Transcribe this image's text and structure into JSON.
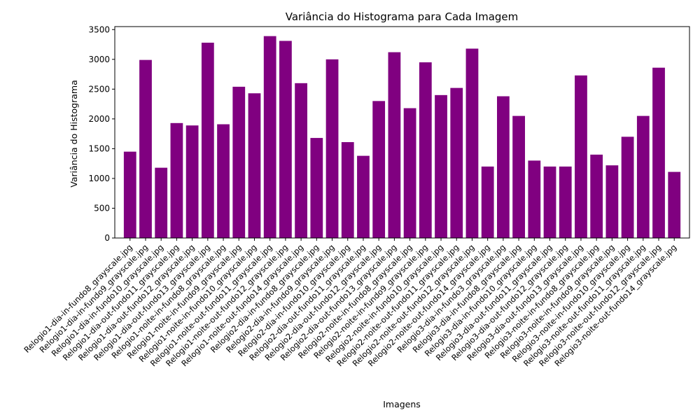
{
  "chart_data": {
    "type": "bar",
    "title": "Variância do Histograma para Cada Imagem",
    "xlabel": "Imagens",
    "ylabel": "Variância do Histograma",
    "ylim": [
      0,
      3550
    ],
    "yticks": [
      0,
      500,
      1000,
      1500,
      2000,
      2500,
      3000,
      3500
    ],
    "bar_color": "#800080",
    "grid": false,
    "categories": [
      "Relogio1-dia-in-fundo8_grayscale.jpg",
      "Relogio1-dia-in-fundo9_grayscale.jpg",
      "Relogio1-dia-in-fundo10_grayscale.jpg",
      "Relogio1-dia-out-fundo11_grayscale.jpg",
      "Relogio1-dia-out-fundo12_grayscale.jpg",
      "Relogio1-dia-out-fundo13_grayscale.jpg",
      "Relogio1-noite-in-fundo8_grayscale.jpg",
      "Relogio1-noite-in-fundo9_grayscale.jpg",
      "Relogio1-noite-in-fundo10_grayscale.jpg",
      "Relogio1-noite-out-fundo11_grayscale.jpg",
      "Relogio1-noite-out-fundo12_grayscale.jpg",
      "Relogio1-noite-out-fundo14_grayscale.jpg",
      "Relogio2-dia-in-fundo8_grayscale.jpg",
      "Relogio2-dia-in-fundo9_grayscale.jpg",
      "Relogio2-dia-in-fundo10_grayscale.jpg",
      "Relogio2-dia-out-fundo11_grayscale.jpg",
      "Relogio2-dia-out-fundo12_grayscale.jpg",
      "Relogio2-dia-out-fundo13_grayscale.jpg",
      "Relogio2-noite-in-fundo8_grayscale.jpg",
      "Relogio2-noite-in-fundo9_grayscale.jpg",
      "Relogio2-noite-in-fundo10_grayscale.jpg",
      "Relogio2-noite-out-fundo11_grayscale.jpg",
      "Relogio2-noite-out-fundo12_grayscale.jpg",
      "Relogio2-noite-out-fundo14_grayscale.jpg",
      "Relogio3-dia-in-fundo3_grayscale.jpg",
      "Relogio3-dia-in-fundo8_grayscale.jpg",
      "Relogio3-dia-in-fundo10_grayscale.jpg",
      "Relogio3-dia-out-fundo11_grayscale.jpg",
      "Relogio3-dia-out-fundo12_grayscale.jpg",
      "Relogio3-dia-out-fundo13_grayscale.jpg",
      "Relogio3-noite-in-fundo8_grayscale.jpg",
      "Relogio3-noite-in-fundo9_grayscale.jpg",
      "Relogio3-noite-in-fundo10_grayscale.jpg",
      "Relogio3-noite-out-fundo11_grayscale.jpg",
      "Relogio3-noite-out-fundo12_grayscale.jpg",
      "Relogio3-noite-out-fundo14_grayscale.jpg"
    ],
    "values": [
      1450,
      2990,
      1180,
      1930,
      1890,
      3280,
      1910,
      2540,
      2430,
      3390,
      3310,
      2600,
      1680,
      3000,
      1610,
      1380,
      2300,
      3120,
      2180,
      2950,
      2400,
      2520,
      3180,
      1200,
      2380,
      2050,
      1300,
      1200,
      1200,
      2730,
      1400,
      1220,
      1700,
      2050,
      2860,
      1110
    ]
  }
}
